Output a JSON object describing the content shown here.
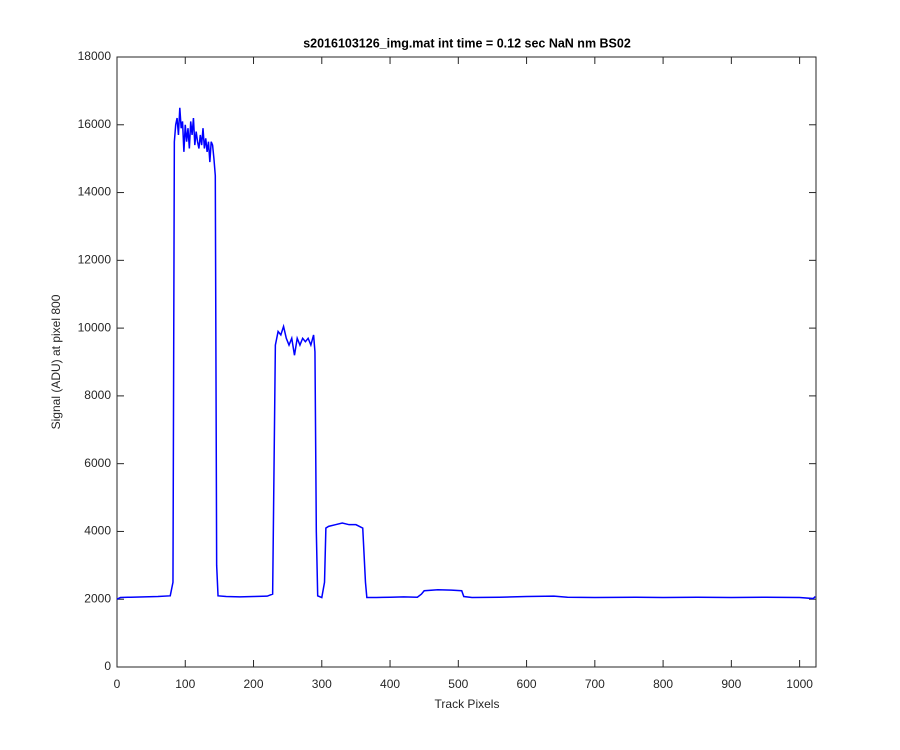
{
  "chart_data": {
    "type": "line",
    "title": "s2016103126_img.mat int time = 0.12 sec  NaN nm BS02",
    "xlabel": "Track Pixels",
    "ylabel": "Signal (ADU) at pixel 800",
    "color": "#0000ff",
    "x": [
      0,
      5,
      20,
      40,
      60,
      78,
      82,
      84,
      86,
      88,
      90,
      92,
      94,
      96,
      98,
      100,
      102,
      104,
      106,
      108,
      110,
      112,
      114,
      116,
      118,
      120,
      122,
      124,
      126,
      128,
      130,
      132,
      134,
      136,
      138,
      140,
      142,
      144,
      146,
      148,
      160,
      180,
      200,
      220,
      228,
      232,
      236,
      240,
      244,
      248,
      252,
      256,
      260,
      264,
      268,
      272,
      276,
      280,
      284,
      288,
      290,
      292,
      294,
      300,
      304,
      306,
      310,
      320,
      330,
      340,
      350,
      360,
      364,
      366,
      380,
      400,
      420,
      440,
      446,
      450,
      470,
      490,
      505,
      508,
      520,
      560,
      600,
      640,
      660,
      700,
      760,
      800,
      850,
      900,
      950,
      1000,
      1020,
      1023
    ],
    "values": [
      2000,
      2050,
      2060,
      2070,
      2080,
      2100,
      2500,
      15500,
      16000,
      16200,
      15700,
      16500,
      15900,
      16100,
      15200,
      16000,
      15500,
      15900,
      15300,
      16100,
      15700,
      16200,
      15400,
      15800,
      15500,
      15300,
      15700,
      15400,
      15900,
      15300,
      15600,
      15200,
      15500,
      14900,
      15500,
      15400,
      15000,
      14500,
      3000,
      2100,
      2080,
      2070,
      2080,
      2090,
      2150,
      9500,
      9900,
      9800,
      10050,
      9700,
      9500,
      9700,
      9200,
      9700,
      9500,
      9700,
      9600,
      9700,
      9500,
      9800,
      9300,
      4000,
      2100,
      2050,
      2500,
      4100,
      4150,
      4200,
      4250,
      4200,
      4200,
      4100,
      2500,
      2050,
      2050,
      2060,
      2070,
      2060,
      2150,
      2250,
      2280,
      2270,
      2250,
      2080,
      2050,
      2060,
      2080,
      2090,
      2060,
      2050,
      2060,
      2050,
      2060,
      2050,
      2060,
      2050,
      2020,
      2080
    ],
    "xlim": [
      0,
      1024
    ],
    "ylim": [
      0,
      18000
    ],
    "xticks": [
      0,
      100,
      200,
      300,
      400,
      500,
      600,
      700,
      800,
      900,
      1000
    ],
    "yticks": [
      0,
      2000,
      4000,
      6000,
      8000,
      10000,
      12000,
      14000,
      16000,
      18000
    ]
  }
}
